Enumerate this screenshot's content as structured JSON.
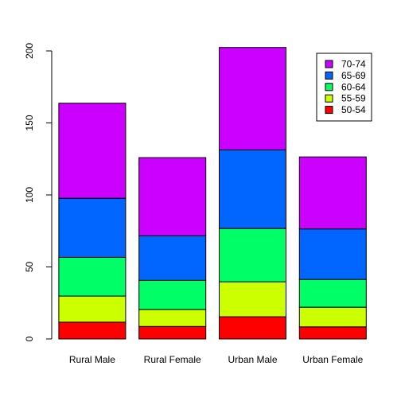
{
  "chart_data": {
    "type": "bar",
    "stacked": true,
    "categories": [
      "Rural Male",
      "Rural Female",
      "Urban Male",
      "Urban Female"
    ],
    "series": [
      {
        "name": "50-54",
        "color": "#FF0000",
        "values": [
          11.7,
          8.7,
          15.4,
          8.4
        ]
      },
      {
        "name": "55-59",
        "color": "#CCFF00",
        "values": [
          18.1,
          11.7,
          24.3,
          13.6
        ]
      },
      {
        "name": "60-64",
        "color": "#00FF66",
        "values": [
          26.9,
          20.3,
          37.0,
          19.3
        ]
      },
      {
        "name": "65-69",
        "color": "#0066FF",
        "values": [
          41.0,
          30.9,
          54.6,
          35.1
        ]
      },
      {
        "name": "70-74",
        "color": "#CC00FF",
        "values": [
          66.0,
          54.3,
          71.1,
          50.0
        ]
      }
    ],
    "legend_order": [
      "70-74",
      "65-69",
      "60-64",
      "55-59",
      "50-54"
    ],
    "legend_position": "top-right",
    "yticks": [
      0,
      50,
      100,
      150,
      200
    ],
    "ylim": [
      0,
      210
    ],
    "title": "",
    "xlabel": "",
    "ylabel": "",
    "grid": false
  }
}
